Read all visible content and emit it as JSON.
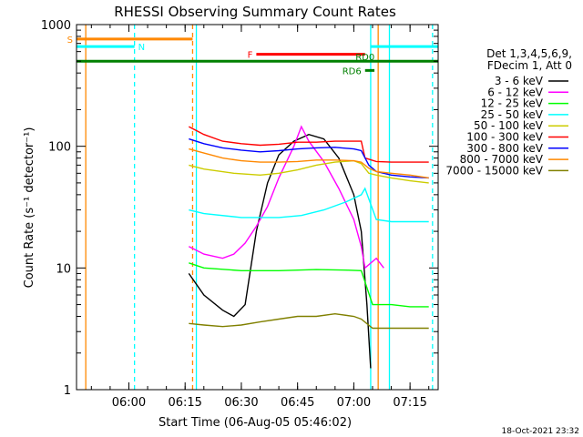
{
  "chart_data": {
    "type": "line",
    "title": "RHESSI Observing Summary Count Rates",
    "xlabel": "Start Time (06-Aug-05 05:46:02)",
    "ylabel": "Count Rate (s⁻¹ detector⁻¹)",
    "y_scale": "log",
    "ylim": [
      1,
      1000
    ],
    "xlim": [
      "05:46:02",
      "07:22:30"
    ],
    "x_ticks": [
      "06:00",
      "06:15",
      "06:30",
      "06:45",
      "07:00",
      "07:15"
    ],
    "y_ticks": [
      "1",
      "10",
      "100",
      "1000"
    ],
    "footer_date": "18-Oct-2021 23:32",
    "legend_header": [
      "Det 1,3,4,5,6,9,",
      "FDecim 1, Att 0"
    ],
    "series": [
      {
        "name": "3 - 6 keV",
        "color": "#000000",
        "x": [
          "06:16:00",
          "06:20:00",
          "06:25:00",
          "06:28:00",
          "06:31:00",
          "06:34:00",
          "06:37:00",
          "06:40:00",
          "06:44:00",
          "06:48:00",
          "06:52:00",
          "06:56:00",
          "07:00:00",
          "07:02:00",
          "07:03:30",
          "07:04:30"
        ],
        "y": [
          9,
          6,
          4.5,
          4,
          5,
          20,
          50,
          85,
          110,
          125,
          115,
          80,
          40,
          20,
          5,
          1.5
        ]
      },
      {
        "name": "6 - 12 keV",
        "color": "#ff00ff",
        "x": [
          "06:16:00",
          "06:20:00",
          "06:25:00",
          "06:28:00",
          "06:31:00",
          "06:34:00",
          "06:37:00",
          "06:40:00",
          "06:44:00",
          "06:46:00",
          "06:48:00",
          "06:52:00",
          "06:56:00",
          "07:00:00",
          "07:02:00",
          "07:03:00",
          "07:06:00",
          "07:08:00"
        ],
        "y": [
          15,
          13,
          12,
          13,
          16,
          22,
          32,
          55,
          100,
          145,
          110,
          75,
          45,
          25,
          15,
          10,
          12,
          10
        ]
      },
      {
        "name": "12 - 25 keV",
        "color": "#00ff00",
        "x": [
          "06:16:00",
          "06:20:00",
          "06:30:00",
          "06:40:00",
          "06:50:00",
          "06:58:00",
          "07:02:00",
          "07:05:00",
          "07:10:00",
          "07:15:00",
          "07:20:00"
        ],
        "y": [
          11,
          10,
          9.5,
          9.5,
          9.7,
          9.6,
          9.5,
          5,
          5,
          4.8,
          4.8
        ]
      },
      {
        "name": "25 - 50 keV",
        "color": "#00ffff",
        "x": [
          "06:16:00",
          "06:20:00",
          "06:30:00",
          "06:40:00",
          "06:46:00",
          "06:52:00",
          "06:58:00",
          "07:02:00",
          "07:03:00",
          "07:06:00",
          "07:10:00",
          "07:15:00",
          "07:20:00"
        ],
        "y": [
          30,
          28,
          26,
          26,
          27,
          30,
          35,
          40,
          45,
          25,
          24,
          24,
          24
        ]
      },
      {
        "name": "50 - 100 keV",
        "color": "#cccc00",
        "x": [
          "06:16:00",
          "06:20:00",
          "06:28:00",
          "06:35:00",
          "06:40:00",
          "06:45:00",
          "06:50:00",
          "06:55:00",
          "07:00:00",
          "07:02:00",
          "07:04:00",
          "07:06:00",
          "07:10:00",
          "07:15:00",
          "07:20:00"
        ],
        "y": [
          70,
          65,
          60,
          58,
          60,
          64,
          70,
          74,
          76,
          72,
          60,
          58,
          55,
          52,
          50
        ]
      },
      {
        "name": "100 - 300 keV",
        "color": "#ff0000",
        "x": [
          "06:16:00",
          "06:20:00",
          "06:25:00",
          "06:30:00",
          "06:35:00",
          "06:40:00",
          "06:45:00",
          "06:50:00",
          "06:55:00",
          "07:00:00",
          "07:02:00",
          "07:03:00",
          "07:06:00",
          "07:10:00",
          "07:15:00",
          "07:20:00"
        ],
        "y": [
          145,
          125,
          110,
          105,
          102,
          104,
          108,
          108,
          110,
          110,
          110,
          80,
          75,
          74,
          74,
          74
        ]
      },
      {
        "name": "300 - 800 keV",
        "color": "#0000ff",
        "x": [
          "06:16:00",
          "06:20:00",
          "06:25:00",
          "06:30:00",
          "06:35:00",
          "06:40:00",
          "06:45:00",
          "06:50:00",
          "06:55:00",
          "07:00:00",
          "07:02:00",
          "07:04:00",
          "07:06:00",
          "07:10:00",
          "07:15:00",
          "07:20:00"
        ],
        "y": [
          115,
          105,
          97,
          93,
          90,
          92,
          95,
          97,
          98,
          95,
          92,
          70,
          62,
          58,
          56,
          55
        ]
      },
      {
        "name": "800 - 7000 keV",
        "color": "#ff8800",
        "x": [
          "06:16:00",
          "06:20:00",
          "06:25:00",
          "06:30:00",
          "06:35:00",
          "06:40:00",
          "06:45:00",
          "06:50:00",
          "06:55:00",
          "07:00:00",
          "07:02:00",
          "07:04:00",
          "07:06:00",
          "07:10:00",
          "07:15:00",
          "07:20:00"
        ],
        "y": [
          95,
          88,
          80,
          76,
          74,
          74,
          75,
          77,
          77,
          76,
          74,
          66,
          62,
          60,
          58,
          55
        ]
      },
      {
        "name": "7000 - 15000 keV",
        "color": "#808000",
        "x": [
          "06:16:00",
          "06:20:00",
          "06:25:00",
          "06:30:00",
          "06:35:00",
          "06:40:00",
          "06:45:00",
          "06:50:00",
          "06:55:00",
          "07:00:00",
          "07:02:00",
          "07:05:00",
          "07:10:00",
          "07:15:00",
          "07:20:00"
        ],
        "y": [
          3.5,
          3.4,
          3.3,
          3.4,
          3.6,
          3.8,
          4,
          4,
          4.2,
          4,
          3.8,
          3.2,
          3.2,
          3.2,
          3.2
        ]
      }
    ],
    "flags": [
      {
        "label": "S",
        "color": "#ff8800",
        "x_start": "05:46:02",
        "x_end": "06:17:00",
        "y": 760,
        "label_pos": "left"
      },
      {
        "label": "N",
        "color": "#00ffff",
        "x_start": "05:46:02",
        "x_end": "06:01:30",
        "y": 660,
        "label_pos": "right"
      },
      {
        "label": "N",
        "color": "#00ffff",
        "x_start": "07:04:30",
        "x_end": "07:22:30",
        "y": 660,
        "label_pos": "none"
      },
      {
        "label": "F",
        "color": "#ff0000",
        "x_start": "06:34:00",
        "x_end": "07:03:00",
        "y": 570,
        "label_pos": "left"
      },
      {
        "label": "RD0",
        "color": "#008000",
        "x_start": "05:46:02",
        "x_end": "07:22:30",
        "y": 500,
        "label_pos": "right_above_end_label"
      },
      {
        "label": "RD6",
        "color": "#008000",
        "x_start": "07:03:00",
        "x_end": "07:05:30",
        "y": 420,
        "label_pos": "left"
      }
    ],
    "vlines": [
      {
        "x": "05:48:30",
        "color": "#ff8800",
        "style": "solid"
      },
      {
        "x": "06:01:30",
        "color": "#00ffff",
        "style": "dashed"
      },
      {
        "x": "06:17:00",
        "color": "#ff8800",
        "style": "dashed"
      },
      {
        "x": "06:18:00",
        "color": "#00ffff",
        "style": "solid"
      },
      {
        "x": "07:04:30",
        "color": "#00ffff",
        "style": "solid"
      },
      {
        "x": "07:06:30",
        "color": "#ff8800",
        "style": "solid"
      },
      {
        "x": "07:09:30",
        "color": "#00ffff",
        "style": "solid"
      },
      {
        "x": "07:21:00",
        "color": "#00ffff",
        "style": "dashed"
      }
    ]
  }
}
